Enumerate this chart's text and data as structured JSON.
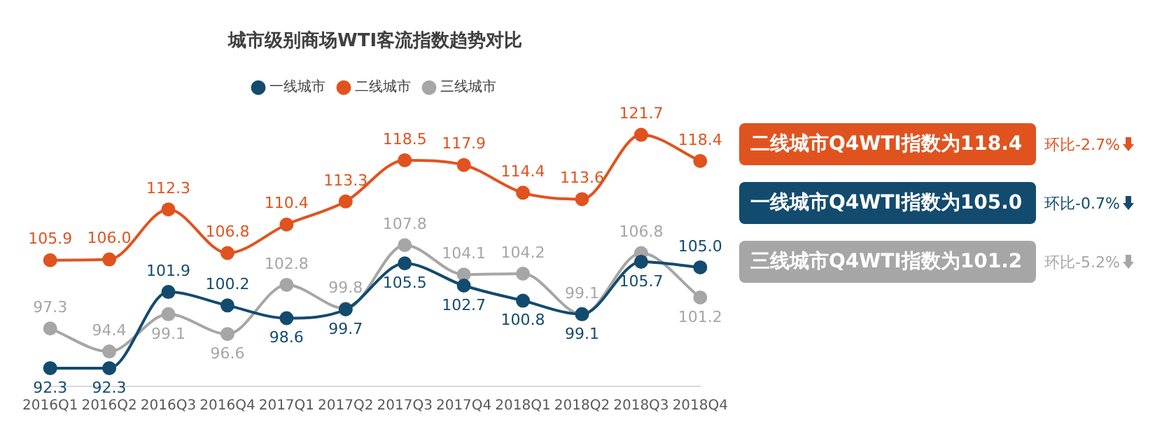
{
  "chart_data": {
    "type": "line",
    "title": "城市级别商场WTI客流指数趋势对比",
    "categories": [
      "2016Q1",
      "2016Q2",
      "2016Q3",
      "2016Q4",
      "2017Q1",
      "2017Q2",
      "2017Q3",
      "2017Q4",
      "2018Q1",
      "2018Q2",
      "2018Q3",
      "2018Q4"
    ],
    "series": [
      {
        "name": "一线城市",
        "color": "#134b6e",
        "values": [
          92.3,
          92.3,
          101.9,
          100.2,
          98.6,
          99.7,
          105.5,
          102.7,
          100.8,
          99.1,
          105.7,
          105.0
        ],
        "value_labels": [
          "92.3",
          "92.3",
          "101.9",
          "100.2",
          "98.6",
          "99.7",
          "105.5",
          "102.7",
          "100.8",
          "99.1",
          "105.7",
          "105.0"
        ]
      },
      {
        "name": "二线城市",
        "color": "#e0531f",
        "values": [
          105.9,
          106.0,
          112.3,
          106.8,
          110.4,
          113.3,
          118.5,
          117.9,
          114.4,
          113.6,
          121.7,
          118.4
        ],
        "value_labels": [
          "105.9",
          "106.0",
          "112.3",
          "106.8",
          "110.4",
          "113.3",
          "118.5",
          "117.9",
          "114.4",
          "113.6",
          "121.7",
          "118.4"
        ]
      },
      {
        "name": "三线城市",
        "color": "#a6a6a6",
        "values": [
          97.3,
          94.4,
          99.1,
          96.6,
          102.8,
          99.8,
          107.8,
          104.1,
          104.2,
          99.1,
          106.8,
          101.2
        ],
        "value_labels": [
          "97.3",
          "94.4",
          "99.1",
          "96.6",
          "102.8",
          "99.8",
          "107.8",
          "104.1",
          "104.2",
          "99.1",
          "106.8",
          "101.2"
        ]
      }
    ],
    "annotations": [
      "二线城市Q4WTI指数为118.4",
      "环比-2.7%",
      "一线城市Q4WTI指数为105.0",
      "环比-0.7%",
      "三线城市Q4WTI指数为101.2",
      "环比-5.2%"
    ],
    "legend": "top",
    "marker": "circle",
    "grid": false
  }
}
